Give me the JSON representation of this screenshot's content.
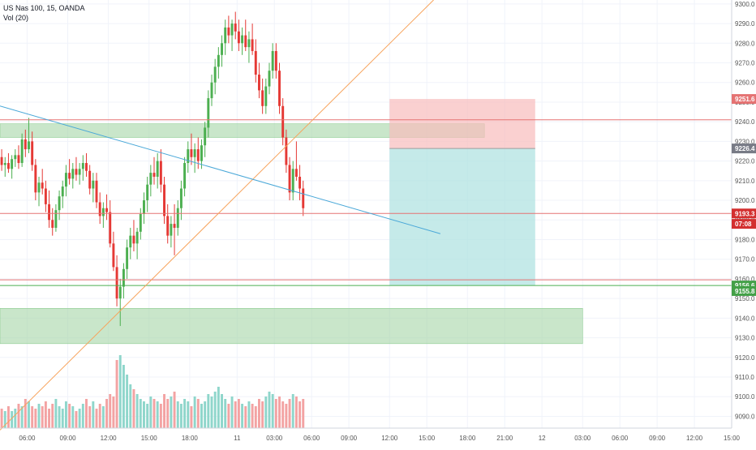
{
  "header": {
    "symbol_line": "US Nas 100, 15, OANDA",
    "volume_line": "Vol (20)"
  },
  "colors": {
    "up": "#4caf50",
    "down": "#e53935",
    "vol_up": "#8fd6cb",
    "vol_down": "#f3a3a3",
    "zone": "#a5d6a7",
    "stop_zone": "#f8bcbc",
    "target_zone": "#b2e3e1",
    "trend_orange": "#f7a35c",
    "trend_blue": "#4aa8d8",
    "hline_red": "#e57373"
  },
  "chart_data": {
    "type": "candlestick",
    "symbol": "US Nas 100",
    "interval": "15",
    "source": "OANDA",
    "y_axis": {
      "range": [
        9084,
        9302
      ],
      "ticks": [
        9090,
        9100,
        9110,
        9120,
        9130,
        9140,
        9150,
        9160,
        9170,
        9180,
        9190,
        9200,
        9210,
        9220,
        9230,
        9240,
        9250,
        9260,
        9270,
        9280,
        9290,
        9300
      ],
      "tick_labels": [
        "9090.0",
        "9100.0",
        "9110.0",
        "9120.0",
        "9130.0",
        "9140.0",
        "9150.0",
        "9160.0",
        "9170.0",
        "9180.0",
        "9190.0",
        "9200.0",
        "9210.0",
        "9220.0",
        "9230.0",
        "9240.0",
        "9250.0",
        "9260.0",
        "9270.0",
        "9280.0",
        "9290.0",
        "9300.0"
      ]
    },
    "x_axis": {
      "bar_range": [
        0,
        216
      ],
      "ticks": [
        {
          "bar": 8,
          "label": "06:00"
        },
        {
          "bar": 20,
          "label": "09:00"
        },
        {
          "bar": 32,
          "label": "12:00"
        },
        {
          "bar": 44,
          "label": "15:00"
        },
        {
          "bar": 56,
          "label": "18:00"
        },
        {
          "bar": 70,
          "label": "11"
        },
        {
          "bar": 81,
          "label": "03:00"
        },
        {
          "bar": 92,
          "label": "06:00"
        },
        {
          "bar": 103,
          "label": "09:00"
        },
        {
          "bar": 115,
          "label": "12:00"
        },
        {
          "bar": 126,
          "label": "15:00"
        },
        {
          "bar": 138,
          "label": "18:00"
        },
        {
          "bar": 149,
          "label": "21:00"
        },
        {
          "bar": 160,
          "label": "12"
        },
        {
          "bar": 172,
          "label": "03:00"
        },
        {
          "bar": 183,
          "label": "06:00"
        },
        {
          "bar": 194,
          "label": "09:00"
        },
        {
          "bar": 205,
          "label": "12:00"
        },
        {
          "bar": 216,
          "label": "15:00"
        }
      ]
    },
    "candles": [
      [
        9222,
        9226,
        9215,
        9218
      ],
      [
        9218,
        9222,
        9212,
        9219
      ],
      [
        9219,
        9224,
        9214,
        9216
      ],
      [
        9216,
        9223,
        9211,
        9221
      ],
      [
        9221,
        9226,
        9217,
        9223
      ],
      [
        9223,
        9228,
        9216,
        9219
      ],
      [
        9219,
        9234,
        9217,
        9231
      ],
      [
        9231,
        9236,
        9222,
        9226
      ],
      [
        9226,
        9242,
        9224,
        9230
      ],
      [
        9230,
        9235,
        9215,
        9218
      ],
      [
        9218,
        9221,
        9200,
        9204
      ],
      [
        9204,
        9212,
        9197,
        9209
      ],
      [
        9209,
        9216,
        9203,
        9206
      ],
      [
        9206,
        9210,
        9194,
        9198
      ],
      [
        9198,
        9205,
        9186,
        9190
      ],
      [
        9190,
        9196,
        9182,
        9186
      ],
      [
        9186,
        9198,
        9184,
        9195
      ],
      [
        9195,
        9205,
        9190,
        9202
      ],
      [
        9202,
        9210,
        9196,
        9207
      ],
      [
        9207,
        9218,
        9202,
        9214
      ],
      [
        9214,
        9221,
        9208,
        9211
      ],
      [
        9211,
        9219,
        9206,
        9216
      ],
      [
        9216,
        9222,
        9210,
        9213
      ],
      [
        9213,
        9219,
        9208,
        9216
      ],
      [
        9216,
        9223,
        9210,
        9219
      ],
      [
        9219,
        9224,
        9212,
        9215
      ],
      [
        9215,
        9218,
        9203,
        9206
      ],
      [
        9206,
        9214,
        9199,
        9210
      ],
      [
        9210,
        9214,
        9196,
        9199
      ],
      [
        9199,
        9204,
        9188,
        9192
      ],
      [
        9192,
        9199,
        9186,
        9196
      ],
      [
        9196,
        9203,
        9190,
        9194
      ],
      [
        9194,
        9200,
        9176,
        9178
      ],
      [
        9178,
        9184,
        9164,
        9166
      ],
      [
        9166,
        9172,
        9146,
        9150
      ],
      [
        9150,
        9160,
        9136,
        9156
      ],
      [
        9156,
        9168,
        9150,
        9165
      ],
      [
        9165,
        9180,
        9160,
        9176
      ],
      [
        9176,
        9186,
        9170,
        9182
      ],
      [
        9182,
        9190,
        9174,
        9178
      ],
      [
        9178,
        9186,
        9170,
        9184
      ],
      [
        9184,
        9196,
        9180,
        9193
      ],
      [
        9193,
        9204,
        9188,
        9200
      ],
      [
        9200,
        9212,
        9194,
        9208
      ],
      [
        9208,
        9218,
        9202,
        9214
      ],
      [
        9214,
        9222,
        9208,
        9212
      ],
      [
        9212,
        9224,
        9206,
        9220
      ],
      [
        9220,
        9226,
        9204,
        9208
      ],
      [
        9208,
        9212,
        9188,
        9192
      ],
      [
        9192,
        9198,
        9178,
        9182
      ],
      [
        9182,
        9192,
        9176,
        9188
      ],
      [
        9188,
        9198,
        9172,
        9186
      ],
      [
        9186,
        9200,
        9182,
        9196
      ],
      [
        9196,
        9210,
        9190,
        9206
      ],
      [
        9206,
        9222,
        9202,
        9219
      ],
      [
        9219,
        9230,
        9214,
        9226
      ],
      [
        9226,
        9234,
        9218,
        9222
      ],
      [
        9222,
        9229,
        9214,
        9226
      ],
      [
        9226,
        9232,
        9216,
        9220
      ],
      [
        9220,
        9231,
        9216,
        9228
      ],
      [
        9228,
        9240,
        9222,
        9237
      ],
      [
        9237,
        9256,
        9232,
        9252
      ],
      [
        9252,
        9264,
        9248,
        9260
      ],
      [
        9260,
        9272,
        9254,
        9268
      ],
      [
        9268,
        9278,
        9262,
        9274
      ],
      [
        9274,
        9284,
        9268,
        9280
      ],
      [
        9280,
        9292,
        9274,
        9288
      ],
      [
        9288,
        9294,
        9280,
        9284
      ],
      [
        9284,
        9292,
        9276,
        9290
      ],
      [
        9290,
        9296,
        9282,
        9286
      ],
      [
        9286,
        9292,
        9276,
        9280
      ],
      [
        9280,
        9288,
        9274,
        9284
      ],
      [
        9284,
        9292,
        9276,
        9278
      ],
      [
        9278,
        9286,
        9270,
        9282
      ],
      [
        9282,
        9290,
        9274,
        9276
      ],
      [
        9276,
        9282,
        9260,
        9264
      ],
      [
        9264,
        9270,
        9252,
        9256
      ],
      [
        9256,
        9262,
        9244,
        9248
      ],
      [
        9248,
        9262,
        9244,
        9258
      ],
      [
        9258,
        9270,
        9254,
        9266
      ],
      [
        9266,
        9280,
        9262,
        9276
      ],
      [
        9276,
        9280,
        9262,
        9266
      ],
      [
        9266,
        9270,
        9244,
        9248
      ],
      [
        9248,
        9252,
        9228,
        9232
      ],
      [
        9232,
        9236,
        9214,
        9218
      ],
      [
        9218,
        9222,
        9200,
        9204
      ],
      [
        9204,
        9220,
        9200,
        9216
      ],
      [
        9216,
        9230,
        9210,
        9212
      ],
      [
        9212,
        9218,
        9200,
        9206
      ],
      [
        9206,
        9210,
        9192,
        9196
      ]
    ],
    "volumes": [
      8,
      7,
      9,
      7,
      8,
      10,
      9,
      12,
      11,
      9,
      8,
      10,
      9,
      11,
      8,
      10,
      12,
      9,
      8,
      11,
      10,
      9,
      7,
      8,
      10,
      12,
      9,
      11,
      8,
      10,
      9,
      12,
      14,
      13,
      28,
      30,
      26,
      22,
      18,
      16,
      14,
      12,
      11,
      10,
      13,
      12,
      11,
      10,
      14,
      12,
      13,
      15,
      11,
      10,
      12,
      11,
      9,
      13,
      12,
      10,
      11,
      14,
      13,
      15,
      17,
      14,
      12,
      10,
      13,
      11,
      12,
      10,
      9,
      11,
      10,
      9,
      12,
      11,
      13,
      15,
      14,
      12,
      13,
      11,
      10,
      12,
      14,
      13,
      11,
      12
    ],
    "annotations": {
      "hlines": [
        {
          "price": 9241.0,
          "color": "red",
          "label": ""
        },
        {
          "price": 9193.3,
          "color": "red",
          "label": "9193.3"
        },
        {
          "price": 9159.5,
          "color": "red",
          "label": ""
        },
        {
          "price": 9156.6,
          "color": "green",
          "label": "9156.6"
        }
      ],
      "price_labels": [
        {
          "price": 9251.6,
          "text": "9251.6",
          "kind": "stop"
        },
        {
          "price": 9226.4,
          "text": "9226.4",
          "kind": "entry"
        },
        {
          "price": 9193.3,
          "text": "9193.3",
          "kind": "last"
        },
        {
          "price": 9188.0,
          "text": "07:08",
          "kind": "countdown"
        },
        {
          "price": 9156.6,
          "text": "9156.6",
          "kind": "target"
        },
        {
          "price": 9153.8,
          "text": "9155.8",
          "kind": "target2"
        }
      ],
      "zones": [
        {
          "bar_from": 0,
          "bar_to": 143,
          "price_low": 9232,
          "price_high": 9239
        },
        {
          "bar_from": 0,
          "bar_to": 172,
          "price_low": 9127,
          "price_high": 9145
        }
      ],
      "position": {
        "bar_from": 115,
        "bar_to": 158,
        "stop": 9251.6,
        "entry": 9226.4,
        "target": 9156.6
      },
      "trendlines": [
        {
          "color": "orange",
          "from": {
            "bar": 0,
            "price": 9083
          },
          "to": {
            "bar": 128,
            "price": 9302
          }
        },
        {
          "color": "blue",
          "from": {
            "bar": 0,
            "price": 9248
          },
          "to": {
            "bar": 130,
            "price": 9183
          }
        }
      ]
    }
  }
}
